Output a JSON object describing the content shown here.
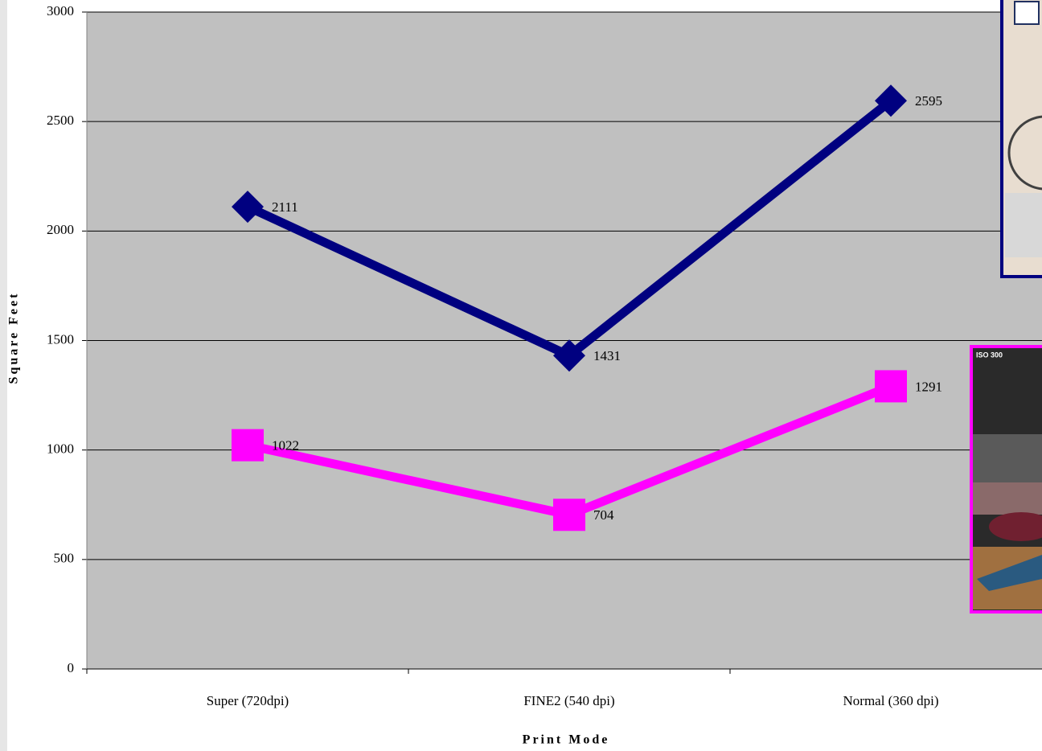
{
  "chart_data": {
    "type": "line",
    "x_label": "Print Mode",
    "y_label": "Square Feet",
    "categories": [
      "Super (720dpi)",
      "FINE2 (540 dpi)",
      "Normal (360 dpi)"
    ],
    "series": [
      {
        "color": "#000080",
        "marker": "diamond",
        "values": [
          2111,
          1431,
          2595
        ]
      },
      {
        "color": "#ff00ff",
        "marker": "square",
        "values": [
          1022,
          704,
          1291
        ]
      }
    ],
    "ylim": [
      0,
      3000
    ],
    "yticks": [
      0,
      500,
      1000,
      1500,
      2000,
      2500,
      3000
    ],
    "grid": true
  },
  "photo_inset": {
    "label": "ISO 300"
  }
}
